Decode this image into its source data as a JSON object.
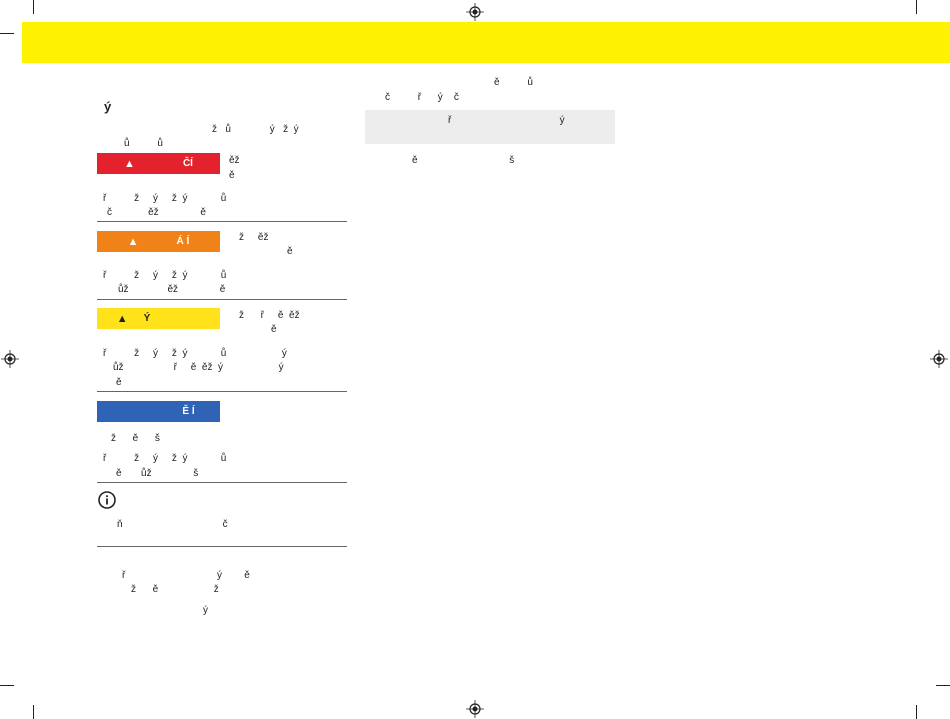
{
  "header": {
    "banner_color": "#fff200"
  },
  "left": {
    "title": "ý",
    "intro": [
      "ž   ů              ý   ž  ý",
      "ů          ů"
    ],
    "warnings": [
      {
        "badge": "ČÍ",
        "color": "#e4222e",
        "aside": [
          "ěž",
          "ě"
        ],
        "body": [
          "ř          ž     ý     ž  ý            ů",
          "č             ěž               ě"
        ]
      },
      {
        "badge": "Á  Í",
        "color": "#f08218",
        "aside": [
          "ž     ěž",
          "ě"
        ],
        "body": [
          "ř          ž     ý     ž  ý            ů",
          "ůž              ěž               ě"
        ]
      },
      {
        "badge": "Ý",
        "color": "#ffe219",
        "aside": [
          "ž      ř     ě  ěž",
          "ě"
        ],
        "body": [
          "ř          ž     ý     ž  ý            ů                    ý",
          "ůž                  ř     ě  ěž  ý                    ý",
          "ě"
        ]
      },
      {
        "badge": "Ě  Í",
        "color": "#2f63b5",
        "aside": [],
        "body": [
          "ž      ě      š",
          "ř          ž     ý     ž  ý            ů",
          "ě       ůž               š"
        ]
      }
    ],
    "info": {
      "body": "ň                                    č"
    },
    "footer_lines": [
      "ř                                 ý        ě",
      "ž      ě                    ž",
      "ý"
    ]
  },
  "right": {
    "intro": [
      "ě          ů",
      "č          ř      ý    č"
    ],
    "grey_box": {
      "text": "ř                                       ý"
    },
    "after": "ě                                 š"
  }
}
